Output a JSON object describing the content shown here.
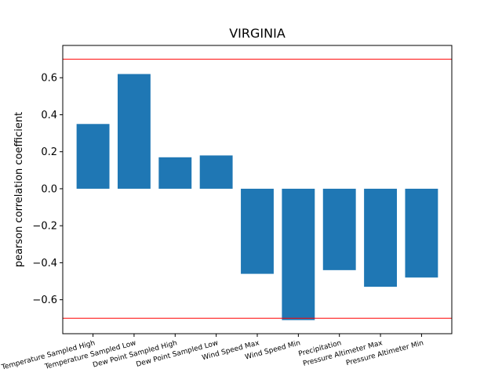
{
  "chart_data": {
    "type": "bar",
    "title": "VIRGINIA",
    "xlabel": "",
    "ylabel": "pearson correlation coefficient",
    "categories": [
      "Temperature Sampled High",
      "Temperature Sampled Low",
      "Dew Point Sampled High",
      "Dew Point Sampled Low",
      "Wind Speed Max",
      "Wind Speed Min",
      "Precipitation",
      "Pressure Altimeter Max",
      "Pressure Altimeter Min"
    ],
    "values": [
      0.35,
      0.62,
      0.17,
      0.18,
      -0.46,
      -0.71,
      -0.44,
      -0.53,
      -0.48
    ],
    "ylim": [
      -0.7836,
      0.7746
    ],
    "yticks": [
      -0.6,
      -0.4,
      -0.2,
      0.0,
      0.2,
      0.4,
      0.6
    ],
    "ytick_labels": [
      "−0.6",
      "−0.4",
      "−0.2",
      "0.0",
      "0.2",
      "0.4",
      "0.6"
    ],
    "reference_lines": [
      0.7,
      -0.7
    ],
    "colors": {
      "bar": "#1f77b4",
      "reference_line": "#ff0000",
      "axis": "#000000"
    },
    "grid": false,
    "legend": "none",
    "xtick_rotation_deg": -15
  }
}
